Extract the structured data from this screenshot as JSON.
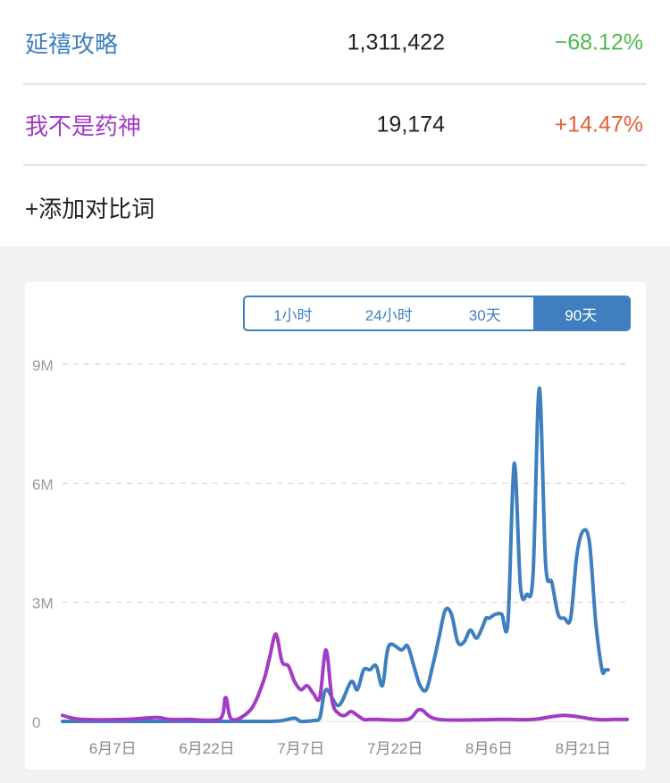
{
  "compare": {
    "items": [
      {
        "name": "延禧攻略",
        "value": "1,311,422",
        "change": "−68.12%",
        "name_color": "#3f7fbf",
        "change_color": "#4cbb4f"
      },
      {
        "name": "我不是药神",
        "value": "19,174",
        "change": "+14.47%",
        "name_color": "#a23cc4",
        "change_color": "#e0603a"
      }
    ],
    "add_label": "+添加对比词"
  },
  "range_tabs": [
    {
      "label": "1小时",
      "active": false
    },
    {
      "label": "24小时",
      "active": false
    },
    {
      "label": "30天",
      "active": false
    },
    {
      "label": "90天",
      "active": true
    }
  ],
  "chart_data": {
    "type": "line",
    "ylim": [
      0,
      9000000
    ],
    "yticks": [
      0,
      3000000,
      6000000,
      9000000
    ],
    "ytick_labels": [
      "0",
      "3M",
      "6M",
      "9M"
    ],
    "xlim": [
      0,
      90
    ],
    "xticks": [
      8,
      23,
      38,
      53,
      68,
      83
    ],
    "xtick_labels": [
      "6月7日",
      "6月22日",
      "7月7日",
      "7月22日",
      "8月6日",
      "8月21日"
    ],
    "grid": "horizontal-dashed",
    "series": [
      {
        "color": "#3f7fbf",
        "x": [
          0,
          10,
          20,
          30,
          33,
          35,
          37,
          38,
          40,
          41,
          42,
          44,
          46,
          47,
          48,
          49,
          50,
          51,
          52,
          54,
          55,
          56,
          57,
          58,
          59,
          60,
          61,
          62,
          63,
          64,
          65,
          66,
          67,
          67.5,
          68,
          69,
          70,
          71,
          72,
          73,
          74,
          75,
          76,
          77,
          78,
          79,
          80,
          81,
          82,
          83,
          84,
          85,
          86,
          86.5,
          87,
          88,
          89,
          90
        ],
        "y": [
          0,
          0,
          0,
          0,
          0,
          20000,
          80000,
          0,
          20000,
          80000,
          800000,
          400000,
          1000000,
          800000,
          1300000,
          1300000,
          1400000,
          900000,
          1900000,
          1800000,
          1900000,
          1400000,
          900000,
          800000,
          1400000,
          2100000,
          2800000,
          2700000,
          2000000,
          2000000,
          2300000,
          2100000,
          2400000,
          2600000,
          2600000,
          2700000,
          2700000,
          2500000,
          6500000,
          3400000,
          3200000,
          3700000,
          8400000,
          4000000,
          3500000,
          2700000,
          2600000,
          2600000,
          4200000,
          4800000,
          4500000,
          2500000,
          1300000,
          1300000,
          1300000,
          1300000,
          1300000,
          1300000
        ]
      },
      {
        "color": "#a23cc4",
        "x": [
          0,
          3,
          10,
          15,
          17,
          20,
          25,
          26,
          27,
          30,
          32,
          33,
          34,
          35,
          36,
          37,
          38,
          39,
          40,
          41,
          42,
          43,
          44,
          45,
          46,
          47,
          48,
          49,
          50,
          55,
          57,
          60,
          70,
          75,
          80,
          85,
          88,
          90
        ],
        "y": [
          150000,
          50000,
          50000,
          100000,
          50000,
          50000,
          50000,
          600000,
          50000,
          300000,
          1000000,
          1600000,
          2200000,
          1500000,
          1400000,
          1000000,
          800000,
          900000,
          700000,
          600000,
          1800000,
          500000,
          200000,
          150000,
          250000,
          150000,
          50000,
          50000,
          50000,
          50000,
          300000,
          50000,
          50000,
          50000,
          150000,
          50000,
          50000,
          50000
        ]
      }
    ]
  }
}
